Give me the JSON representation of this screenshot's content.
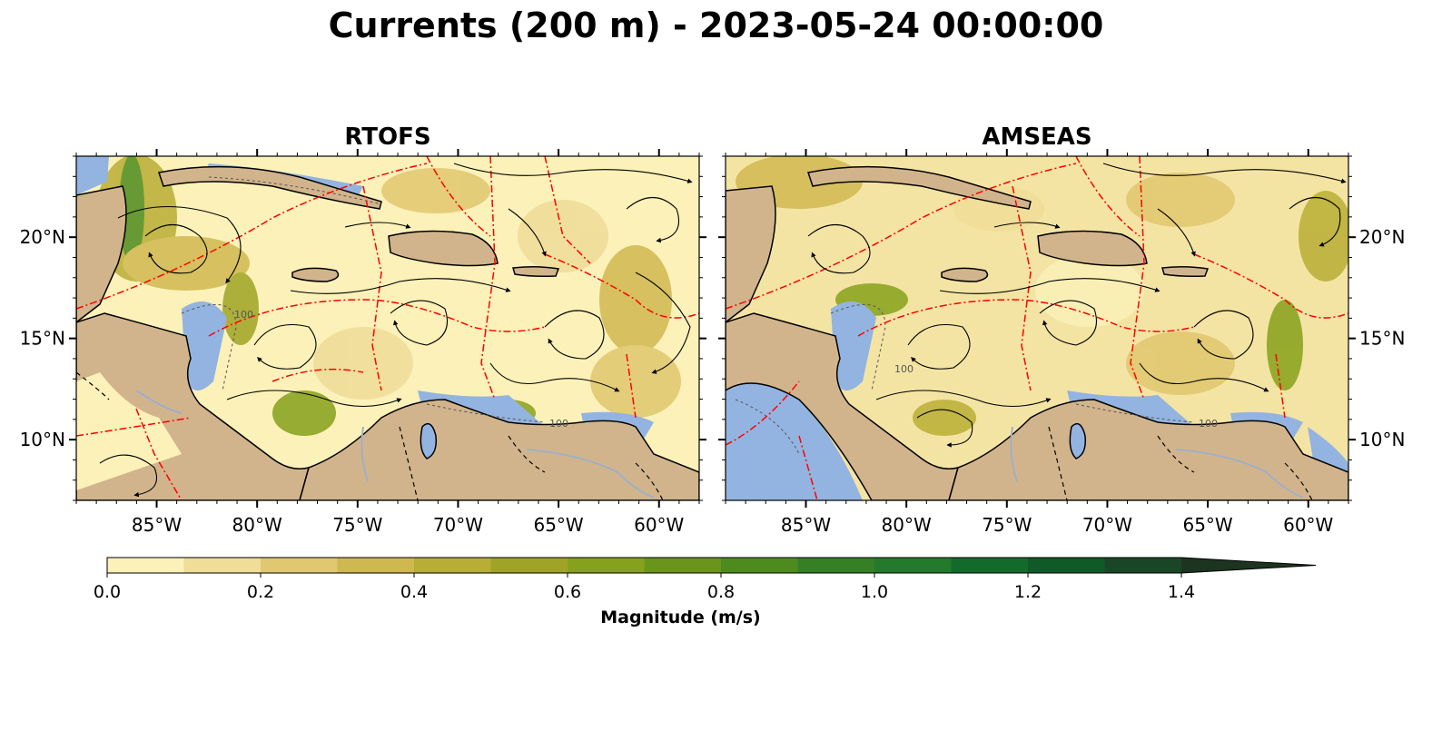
{
  "title": "Currents (200 m) - 2023-05-24 00:00:00",
  "panels": [
    {
      "title": "RTOFS"
    },
    {
      "title": "AMSEAS"
    }
  ],
  "map": {
    "lon_range": [
      -89,
      -58
    ],
    "lat_range": [
      7,
      24
    ],
    "lon_ticks": [
      -85,
      -80,
      -75,
      -70,
      -65,
      -60
    ],
    "lon_tick_labels": [
      "85°W",
      "80°W",
      "75°W",
      "70°W",
      "65°W",
      "60°W"
    ],
    "lat_ticks": [
      10,
      15,
      20
    ],
    "lat_tick_labels": [
      "10°N",
      "15°N",
      "20°N"
    ],
    "isobath_label": "100",
    "colors": {
      "ocean_low": "#fbf1b9",
      "land": "#d2b48c",
      "shelf_water": "#93b4e0",
      "boundaries": "#ff0000",
      "streamlines": "#000000"
    }
  },
  "colorbar": {
    "label": "Magnitude (m/s)",
    "min": 0.0,
    "max": 1.4,
    "step": 0.1,
    "extend": "max",
    "tick_values": [
      0.0,
      0.2,
      0.4,
      0.6,
      0.8,
      1.0,
      1.2,
      1.4
    ],
    "tick_labels": [
      "0.0",
      "0.2",
      "0.4",
      "0.6",
      "0.8",
      "1.0",
      "1.2",
      "1.4"
    ],
    "colors": [
      "#fbf1b9",
      "#efdd98",
      "#e1c76f",
      "#d0b850",
      "#b9ae35",
      "#9fa425",
      "#86a11b",
      "#6a951b",
      "#4e8b1f",
      "#357f25",
      "#237a2a",
      "#136b2b",
      "#0f5a26",
      "#1a4628",
      "#1c3420",
      "#1b2818"
    ]
  }
}
